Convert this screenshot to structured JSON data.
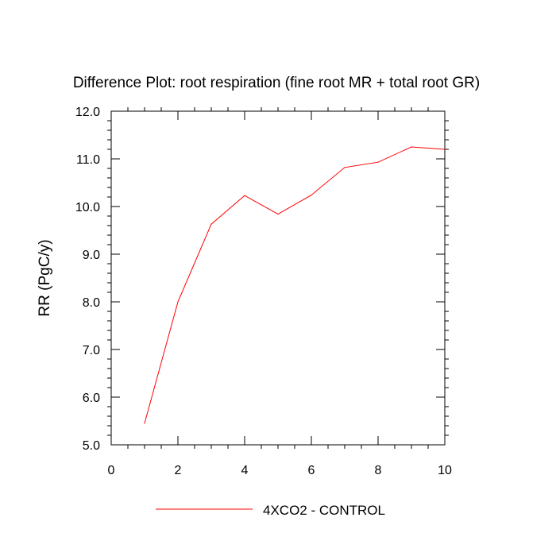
{
  "chart_data": {
    "type": "line",
    "title": "Difference Plot: root respiration (fine root MR + total root GR)",
    "ylabel": "RR  (PgC/y)",
    "xlabel": "",
    "xlim": [
      0,
      10
    ],
    "ylim": [
      5.0,
      12.0
    ],
    "x_ticks": [
      0,
      2,
      4,
      6,
      8,
      10
    ],
    "x_tick_labels": [
      "0",
      "2",
      "4",
      "6",
      "8",
      "10"
    ],
    "y_ticks": [
      5,
      6,
      7,
      8,
      9,
      10,
      11,
      12
    ],
    "y_tick_labels": [
      "5.0",
      "6.0",
      "7.0",
      "8.0",
      "9.0",
      "10.0",
      "11.0",
      "12.0"
    ],
    "grid": false,
    "legend_position": "bottom",
    "series": [
      {
        "name": "4XCO2 - CONTROL",
        "color": "#ff0000",
        "x": [
          1,
          2,
          3,
          4,
          5,
          6,
          7,
          8,
          9,
          10
        ],
        "y": [
          5.45,
          8.0,
          9.63,
          10.23,
          9.84,
          10.24,
          10.82,
          10.93,
          11.25,
          11.2
        ]
      }
    ]
  }
}
